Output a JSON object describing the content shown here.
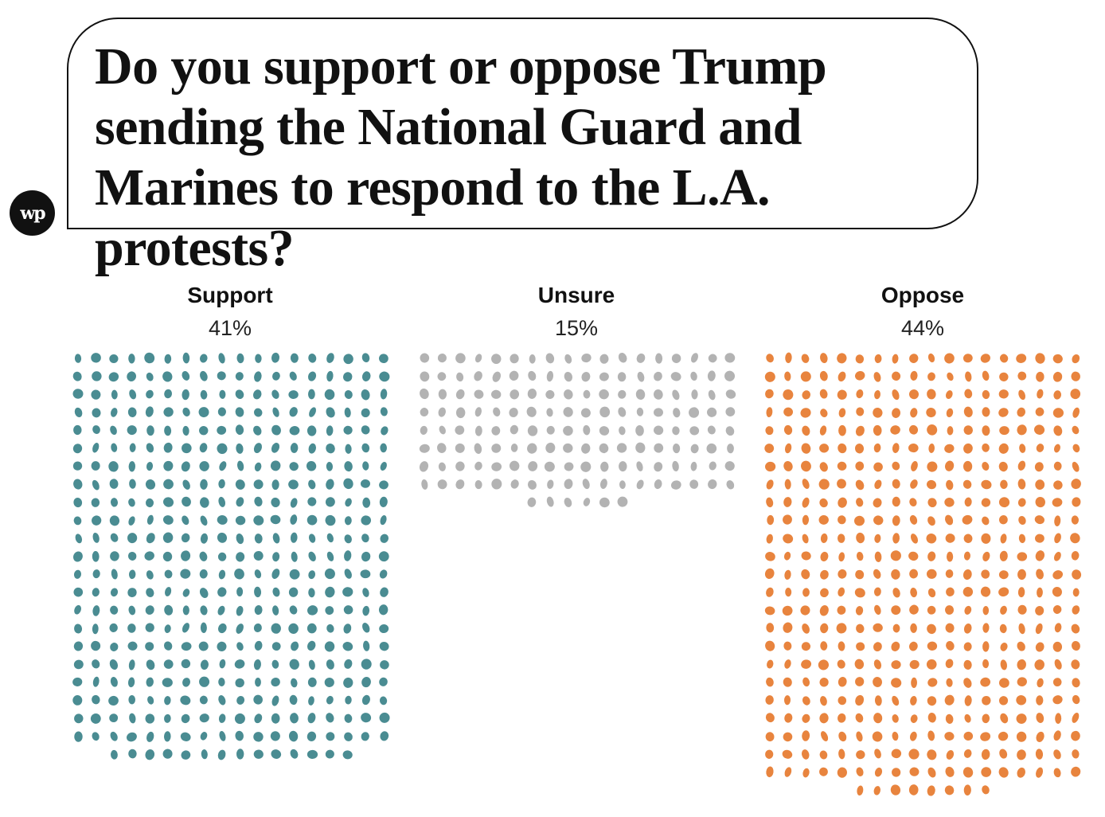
{
  "logo": {
    "text": "wp",
    "icon": "washington-post-logo-icon"
  },
  "title": "Do you support or oppose Trump sending the National Guard and Marines to respond to the L.A. protests?",
  "chart_data": {
    "type": "waffle",
    "title": "Do you support or oppose Trump sending the National Guard and Marines to respond to the L.A. protests?",
    "categories": [
      "Support",
      "Unsure",
      "Oppose"
    ],
    "values": [
      41,
      15,
      44
    ],
    "value_labels": [
      "41%",
      "15%",
      "44%"
    ],
    "colors": [
      "#4a8c92",
      "#b3b3b3",
      "#e8843e"
    ],
    "dots_per_percent": 10,
    "dots_per_row": 18,
    "legend": "labels above each group"
  }
}
